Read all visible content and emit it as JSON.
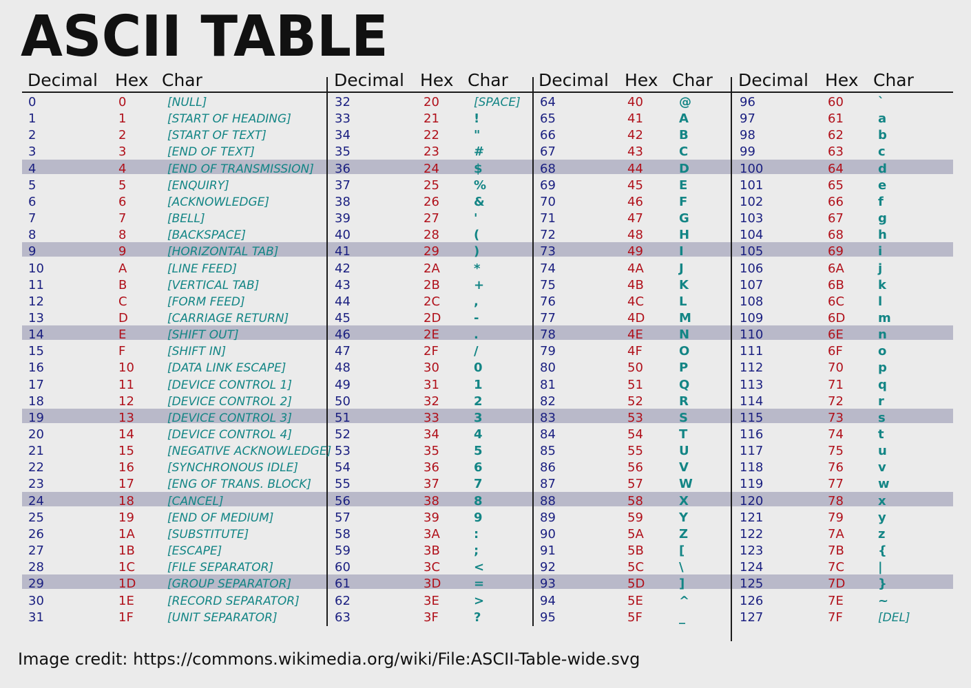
{
  "title": "ASCII TABLE",
  "headers": {
    "decimal": "Decimal",
    "hex": "Hex",
    "char": "Char"
  },
  "credit": "Image credit: https://commons.wikimedia.org/wiki/File:ASCII-Table-wide.svg",
  "colors": {
    "decimal": "#1a1f80",
    "hex": "#b0101a",
    "char": "#138585",
    "stripe": "#b9b9c9"
  },
  "columns": [
    {
      "rows": [
        {
          "dec": "0",
          "hex": "0",
          "char": "[NULL]",
          "ctrl": true
        },
        {
          "dec": "1",
          "hex": "1",
          "char": "[START OF HEADING]",
          "ctrl": true
        },
        {
          "dec": "2",
          "hex": "2",
          "char": "[START OF TEXT]",
          "ctrl": true
        },
        {
          "dec": "3",
          "hex": "3",
          "char": "[END OF TEXT]",
          "ctrl": true
        },
        {
          "dec": "4",
          "hex": "4",
          "char": "[END OF TRANSMISSION]",
          "ctrl": true
        },
        {
          "dec": "5",
          "hex": "5",
          "char": "[ENQUIRY]",
          "ctrl": true
        },
        {
          "dec": "6",
          "hex": "6",
          "char": "[ACKNOWLEDGE]",
          "ctrl": true
        },
        {
          "dec": "7",
          "hex": "7",
          "char": "[BELL]",
          "ctrl": true
        },
        {
          "dec": "8",
          "hex": "8",
          "char": "[BACKSPACE]",
          "ctrl": true
        },
        {
          "dec": "9",
          "hex": "9",
          "char": "[HORIZONTAL TAB]",
          "ctrl": true
        },
        {
          "dec": "10",
          "hex": "A",
          "char": "[LINE FEED]",
          "ctrl": true
        },
        {
          "dec": "11",
          "hex": "B",
          "char": "[VERTICAL TAB]",
          "ctrl": true
        },
        {
          "dec": "12",
          "hex": "C",
          "char": "[FORM FEED]",
          "ctrl": true
        },
        {
          "dec": "13",
          "hex": "D",
          "char": "[CARRIAGE RETURN]",
          "ctrl": true
        },
        {
          "dec": "14",
          "hex": "E",
          "char": "[SHIFT OUT]",
          "ctrl": true
        },
        {
          "dec": "15",
          "hex": "F",
          "char": "[SHIFT IN]",
          "ctrl": true
        },
        {
          "dec": "16",
          "hex": "10",
          "char": "[DATA LINK ESCAPE]",
          "ctrl": true
        },
        {
          "dec": "17",
          "hex": "11",
          "char": "[DEVICE CONTROL 1]",
          "ctrl": true
        },
        {
          "dec": "18",
          "hex": "12",
          "char": "[DEVICE CONTROL 2]",
          "ctrl": true
        },
        {
          "dec": "19",
          "hex": "13",
          "char": "[DEVICE CONTROL 3]",
          "ctrl": true
        },
        {
          "dec": "20",
          "hex": "14",
          "char": "[DEVICE CONTROL 4]",
          "ctrl": true
        },
        {
          "dec": "21",
          "hex": "15",
          "char": "[NEGATIVE ACKNOWLEDGE]",
          "ctrl": true
        },
        {
          "dec": "22",
          "hex": "16",
          "char": "[SYNCHRONOUS IDLE]",
          "ctrl": true
        },
        {
          "dec": "23",
          "hex": "17",
          "char": "[ENG OF TRANS. BLOCK]",
          "ctrl": true
        },
        {
          "dec": "24",
          "hex": "18",
          "char": "[CANCEL]",
          "ctrl": true
        },
        {
          "dec": "25",
          "hex": "19",
          "char": "[END OF MEDIUM]",
          "ctrl": true
        },
        {
          "dec": "26",
          "hex": "1A",
          "char": "[SUBSTITUTE]",
          "ctrl": true
        },
        {
          "dec": "27",
          "hex": "1B",
          "char": "[ESCAPE]",
          "ctrl": true
        },
        {
          "dec": "28",
          "hex": "1C",
          "char": "[FILE SEPARATOR]",
          "ctrl": true
        },
        {
          "dec": "29",
          "hex": "1D",
          "char": "[GROUP SEPARATOR]",
          "ctrl": true
        },
        {
          "dec": "30",
          "hex": "1E",
          "char": "[RECORD SEPARATOR]",
          "ctrl": true
        },
        {
          "dec": "31",
          "hex": "1F",
          "char": "[UNIT SEPARATOR]",
          "ctrl": true
        }
      ]
    },
    {
      "rows": [
        {
          "dec": "32",
          "hex": "20",
          "char": "[SPACE]",
          "ctrl": true
        },
        {
          "dec": "33",
          "hex": "21",
          "char": "!"
        },
        {
          "dec": "34",
          "hex": "22",
          "char": "\""
        },
        {
          "dec": "35",
          "hex": "23",
          "char": "#"
        },
        {
          "dec": "36",
          "hex": "24",
          "char": "$"
        },
        {
          "dec": "37",
          "hex": "25",
          "char": "%"
        },
        {
          "dec": "38",
          "hex": "26",
          "char": "&"
        },
        {
          "dec": "39",
          "hex": "27",
          "char": "'"
        },
        {
          "dec": "40",
          "hex": "28",
          "char": "("
        },
        {
          "dec": "41",
          "hex": "29",
          "char": ")"
        },
        {
          "dec": "42",
          "hex": "2A",
          "char": "*"
        },
        {
          "dec": "43",
          "hex": "2B",
          "char": "+"
        },
        {
          "dec": "44",
          "hex": "2C",
          "char": ","
        },
        {
          "dec": "45",
          "hex": "2D",
          "char": "-"
        },
        {
          "dec": "46",
          "hex": "2E",
          "char": "."
        },
        {
          "dec": "47",
          "hex": "2F",
          "char": "/"
        },
        {
          "dec": "48",
          "hex": "30",
          "char": "0"
        },
        {
          "dec": "49",
          "hex": "31",
          "char": "1"
        },
        {
          "dec": "50",
          "hex": "32",
          "char": "2"
        },
        {
          "dec": "51",
          "hex": "33",
          "char": "3"
        },
        {
          "dec": "52",
          "hex": "34",
          "char": "4"
        },
        {
          "dec": "53",
          "hex": "35",
          "char": "5"
        },
        {
          "dec": "54",
          "hex": "36",
          "char": "6"
        },
        {
          "dec": "55",
          "hex": "37",
          "char": "7"
        },
        {
          "dec": "56",
          "hex": "38",
          "char": "8"
        },
        {
          "dec": "57",
          "hex": "39",
          "char": "9"
        },
        {
          "dec": "58",
          "hex": "3A",
          "char": ":"
        },
        {
          "dec": "59",
          "hex": "3B",
          "char": ";"
        },
        {
          "dec": "60",
          "hex": "3C",
          "char": "<"
        },
        {
          "dec": "61",
          "hex": "3D",
          "char": "="
        },
        {
          "dec": "62",
          "hex": "3E",
          "char": ">"
        },
        {
          "dec": "63",
          "hex": "3F",
          "char": "?"
        }
      ]
    },
    {
      "rows": [
        {
          "dec": "64",
          "hex": "40",
          "char": "@"
        },
        {
          "dec": "65",
          "hex": "41",
          "char": "A"
        },
        {
          "dec": "66",
          "hex": "42",
          "char": "B"
        },
        {
          "dec": "67",
          "hex": "43",
          "char": "C"
        },
        {
          "dec": "68",
          "hex": "44",
          "char": "D"
        },
        {
          "dec": "69",
          "hex": "45",
          "char": "E"
        },
        {
          "dec": "70",
          "hex": "46",
          "char": "F"
        },
        {
          "dec": "71",
          "hex": "47",
          "char": "G"
        },
        {
          "dec": "72",
          "hex": "48",
          "char": "H"
        },
        {
          "dec": "73",
          "hex": "49",
          "char": "I"
        },
        {
          "dec": "74",
          "hex": "4A",
          "char": "J"
        },
        {
          "dec": "75",
          "hex": "4B",
          "char": "K"
        },
        {
          "dec": "76",
          "hex": "4C",
          "char": "L"
        },
        {
          "dec": "77",
          "hex": "4D",
          "char": "M"
        },
        {
          "dec": "78",
          "hex": "4E",
          "char": "N"
        },
        {
          "dec": "79",
          "hex": "4F",
          "char": "O"
        },
        {
          "dec": "80",
          "hex": "50",
          "char": "P"
        },
        {
          "dec": "81",
          "hex": "51",
          "char": "Q"
        },
        {
          "dec": "82",
          "hex": "52",
          "char": "R"
        },
        {
          "dec": "83",
          "hex": "53",
          "char": "S"
        },
        {
          "dec": "84",
          "hex": "54",
          "char": "T"
        },
        {
          "dec": "85",
          "hex": "55",
          "char": "U"
        },
        {
          "dec": "86",
          "hex": "56",
          "char": "V"
        },
        {
          "dec": "87",
          "hex": "57",
          "char": "W"
        },
        {
          "dec": "88",
          "hex": "58",
          "char": "X"
        },
        {
          "dec": "89",
          "hex": "59",
          "char": "Y"
        },
        {
          "dec": "90",
          "hex": "5A",
          "char": "Z"
        },
        {
          "dec": "91",
          "hex": "5B",
          "char": "["
        },
        {
          "dec": "92",
          "hex": "5C",
          "char": "\\"
        },
        {
          "dec": "93",
          "hex": "5D",
          "char": "]"
        },
        {
          "dec": "94",
          "hex": "5E",
          "char": "^"
        },
        {
          "dec": "95",
          "hex": "5F",
          "char": "_"
        }
      ]
    },
    {
      "rows": [
        {
          "dec": "96",
          "hex": "60",
          "char": "`"
        },
        {
          "dec": "97",
          "hex": "61",
          "char": "a"
        },
        {
          "dec": "98",
          "hex": "62",
          "char": "b"
        },
        {
          "dec": "99",
          "hex": "63",
          "char": "c"
        },
        {
          "dec": "100",
          "hex": "64",
          "char": "d"
        },
        {
          "dec": "101",
          "hex": "65",
          "char": "e"
        },
        {
          "dec": "102",
          "hex": "66",
          "char": "f"
        },
        {
          "dec": "103",
          "hex": "67",
          "char": "g"
        },
        {
          "dec": "104",
          "hex": "68",
          "char": "h"
        },
        {
          "dec": "105",
          "hex": "69",
          "char": "i"
        },
        {
          "dec": "106",
          "hex": "6A",
          "char": "j"
        },
        {
          "dec": "107",
          "hex": "6B",
          "char": "k"
        },
        {
          "dec": "108",
          "hex": "6C",
          "char": "l"
        },
        {
          "dec": "109",
          "hex": "6D",
          "char": "m"
        },
        {
          "dec": "110",
          "hex": "6E",
          "char": "n"
        },
        {
          "dec": "111",
          "hex": "6F",
          "char": "o"
        },
        {
          "dec": "112",
          "hex": "70",
          "char": "p"
        },
        {
          "dec": "113",
          "hex": "71",
          "char": "q"
        },
        {
          "dec": "114",
          "hex": "72",
          "char": "r"
        },
        {
          "dec": "115",
          "hex": "73",
          "char": "s"
        },
        {
          "dec": "116",
          "hex": "74",
          "char": "t"
        },
        {
          "dec": "117",
          "hex": "75",
          "char": "u"
        },
        {
          "dec": "118",
          "hex": "76",
          "char": "v"
        },
        {
          "dec": "119",
          "hex": "77",
          "char": "w"
        },
        {
          "dec": "120",
          "hex": "78",
          "char": "x"
        },
        {
          "dec": "121",
          "hex": "79",
          "char": "y"
        },
        {
          "dec": "122",
          "hex": "7A",
          "char": "z"
        },
        {
          "dec": "123",
          "hex": "7B",
          "char": "{"
        },
        {
          "dec": "124",
          "hex": "7C",
          "char": "|"
        },
        {
          "dec": "125",
          "hex": "7D",
          "char": "}"
        },
        {
          "dec": "126",
          "hex": "7E",
          "char": "~"
        },
        {
          "dec": "127",
          "hex": "7F",
          "char": "[DEL]",
          "ctrl": true
        }
      ]
    }
  ]
}
